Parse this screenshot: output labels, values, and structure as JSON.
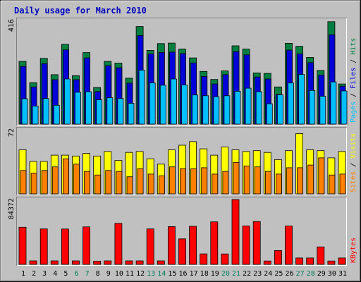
{
  "chart_data": {
    "type": "bar",
    "title": "Daily usage for March 2010",
    "categories": [
      "1",
      "2",
      "3",
      "4",
      "5",
      "6",
      "7",
      "8",
      "9",
      "10",
      "11",
      "12",
      "13",
      "14",
      "15",
      "16",
      "17",
      "18",
      "19",
      "20",
      "21",
      "22",
      "23",
      "24",
      "25",
      "26",
      "27",
      "28",
      "29",
      "30",
      "31"
    ],
    "weekend_days": [
      "6",
      "7",
      "13",
      "14",
      "20",
      "21",
      "27",
      "28"
    ],
    "panels": {
      "top": {
        "max_label": "416",
        "ymax": 416,
        "series": [
          {
            "name": "Hits",
            "color": "#008040",
            "values": [
              250,
              165,
              262,
              197,
              318,
              193,
              285,
              146,
              250,
              243,
              183,
              389,
              294,
              321,
              323,
              299,
              264,
              210,
              178,
              212,
              312,
              299,
              204,
              202,
              148,
              322,
              310,
              266,
              214,
              408,
              160
            ]
          },
          {
            "name": "Files",
            "color": "#0000d8",
            "values": [
              230,
              148,
              241,
              177,
              296,
              177,
              264,
              130,
              233,
              225,
              163,
              353,
              280,
              286,
              287,
              281,
              244,
              190,
              160,
              197,
              289,
              276,
              188,
              180,
              118,
              295,
              280,
              245,
              195,
              356,
              151
            ]
          },
          {
            "name": "Pages",
            "color": "#00bfff",
            "values": [
              101,
              72,
              102,
              75,
              180,
              127,
              129,
              97,
              105,
              102,
              83,
              215,
              164,
              155,
              180,
              156,
              116,
              113,
              109,
              113,
              131,
              143,
              129,
              81,
              117,
              164,
              198,
              134,
              111,
              168,
              132
            ]
          }
        ]
      },
      "mid": {
        "max_label": "72",
        "ymax": 72,
        "series": [
          {
            "name": "Visits",
            "color": "#ffff00",
            "values": [
              49,
              36,
              36,
              43,
              43,
              42,
              45,
              42,
              47,
              37,
              46,
              47,
              39,
              33,
              49,
              54,
              58,
              50,
              43,
              52,
              49,
              47,
              48,
              46,
              38,
              48,
              67,
              49,
              48,
              40,
              47
            ]
          },
          {
            "name": "Sites",
            "color": "#ff8000",
            "values": [
              26,
              23,
              26,
              30,
              39,
              33,
              25,
              21,
              26,
              25,
              19,
              28,
              22,
              20,
              30,
              28,
              28,
              29,
              22,
              25,
              35,
              31,
              30,
              25,
              22,
              29,
              29,
              32,
              40,
              21,
              22
            ]
          }
        ]
      },
      "bot": {
        "max_label": "84372",
        "ymax": 84372,
        "series": [
          {
            "name": "KBytes",
            "color": "#ff0000",
            "values": [
              48300,
              4600,
              46100,
              4600,
              46000,
              4600,
              48800,
              4200,
              4600,
              53400,
              4600,
              4600,
              46100,
              4600,
              49200,
              33200,
              49500,
              13700,
              55300,
              13600,
              84372,
              50000,
              55800,
              4400,
              18000,
              50000,
              8300,
              8300,
              22700,
              4400,
              8300
            ]
          }
        ]
      }
    }
  }
}
